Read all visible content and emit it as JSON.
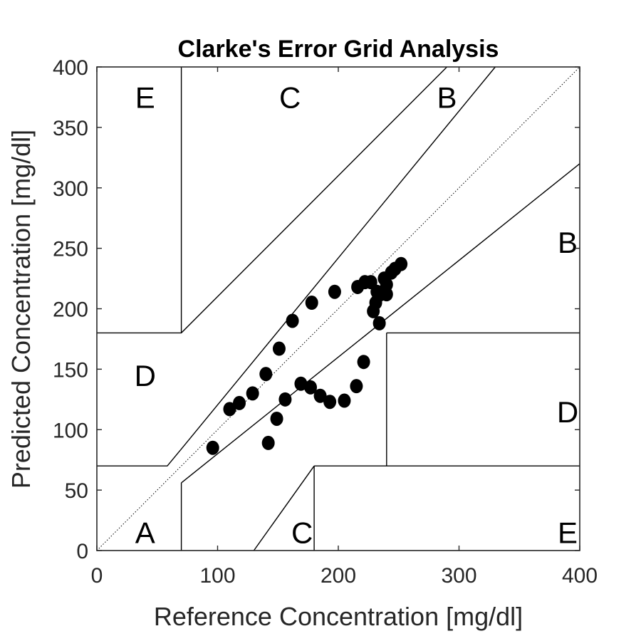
{
  "chart_data": {
    "type": "scatter",
    "title": "Clarke's Error Grid Analysis",
    "xlabel": "Reference Concentration [mg/dl]",
    "ylabel": "Predicted Concentration [mg/dl]",
    "xlim": [
      0,
      400
    ],
    "ylim": [
      0,
      400
    ],
    "xticks": [
      "0",
      "100",
      "200",
      "300",
      "400"
    ],
    "yticks": [
      "0",
      "50",
      "100",
      "150",
      "200",
      "250",
      "300",
      "350",
      "400"
    ],
    "grid": false,
    "identity_line": {
      "style": "dotted",
      "from": [
        0,
        0
      ],
      "to": [
        400,
        400
      ]
    },
    "zone_boundaries": [
      [
        [
          70,
          180
        ],
        [
          70,
          400
        ]
      ],
      [
        [
          0,
          180
        ],
        [
          70,
          180
        ],
        [
          290,
          400
        ]
      ],
      [
        [
          0,
          70
        ],
        [
          58.33,
          70
        ],
        [
          70,
          84
        ],
        [
          330,
          400
        ]
      ],
      [
        [
          70,
          56
        ],
        [
          70,
          0
        ]
      ],
      [
        [
          70,
          56
        ],
        [
          400,
          320
        ]
      ],
      [
        [
          240,
          180
        ],
        [
          400,
          180
        ]
      ],
      [
        [
          240,
          70
        ],
        [
          240,
          180
        ]
      ],
      [
        [
          180,
          70
        ],
        [
          400,
          70
        ]
      ],
      [
        [
          180,
          70
        ],
        [
          180,
          0
        ]
      ],
      [
        [
          130,
          0
        ],
        [
          180,
          70
        ]
      ]
    ],
    "zone_labels": [
      {
        "text": "A",
        "x": 40,
        "y": 15
      },
      {
        "text": "B",
        "x": 290,
        "y": 375
      },
      {
        "text": "B",
        "x": 390,
        "y": 255
      },
      {
        "text": "C",
        "x": 160,
        "y": 375
      },
      {
        "text": "C",
        "x": 170,
        "y": 15
      },
      {
        "text": "D",
        "x": 40,
        "y": 145
      },
      {
        "text": "D",
        "x": 390,
        "y": 115
      },
      {
        "text": "E",
        "x": 40,
        "y": 375
      },
      {
        "text": "E",
        "x": 390,
        "y": 15
      }
    ],
    "series": [
      {
        "points": [
          [
            96,
            85
          ],
          [
            110,
            117
          ],
          [
            118,
            122
          ],
          [
            129,
            130
          ],
          [
            140,
            146
          ],
          [
            151,
            167
          ],
          [
            162,
            190
          ],
          [
            178,
            205
          ],
          [
            197,
            214
          ],
          [
            216,
            218
          ],
          [
            222,
            222
          ],
          [
            227,
            222
          ],
          [
            232,
            214
          ],
          [
            229,
            198
          ],
          [
            234,
            188
          ],
          [
            142,
            89
          ],
          [
            149,
            109
          ],
          [
            156,
            125
          ],
          [
            169,
            138
          ],
          [
            177,
            135
          ],
          [
            185,
            128
          ],
          [
            193,
            123
          ],
          [
            205,
            124
          ],
          [
            215,
            136
          ],
          [
            221,
            156
          ],
          [
            231,
            205
          ],
          [
            235,
            212
          ],
          [
            240,
            212
          ],
          [
            240,
            220
          ],
          [
            238,
            225
          ],
          [
            244,
            230
          ],
          [
            247,
            233
          ],
          [
            252,
            237
          ]
        ]
      }
    ]
  }
}
